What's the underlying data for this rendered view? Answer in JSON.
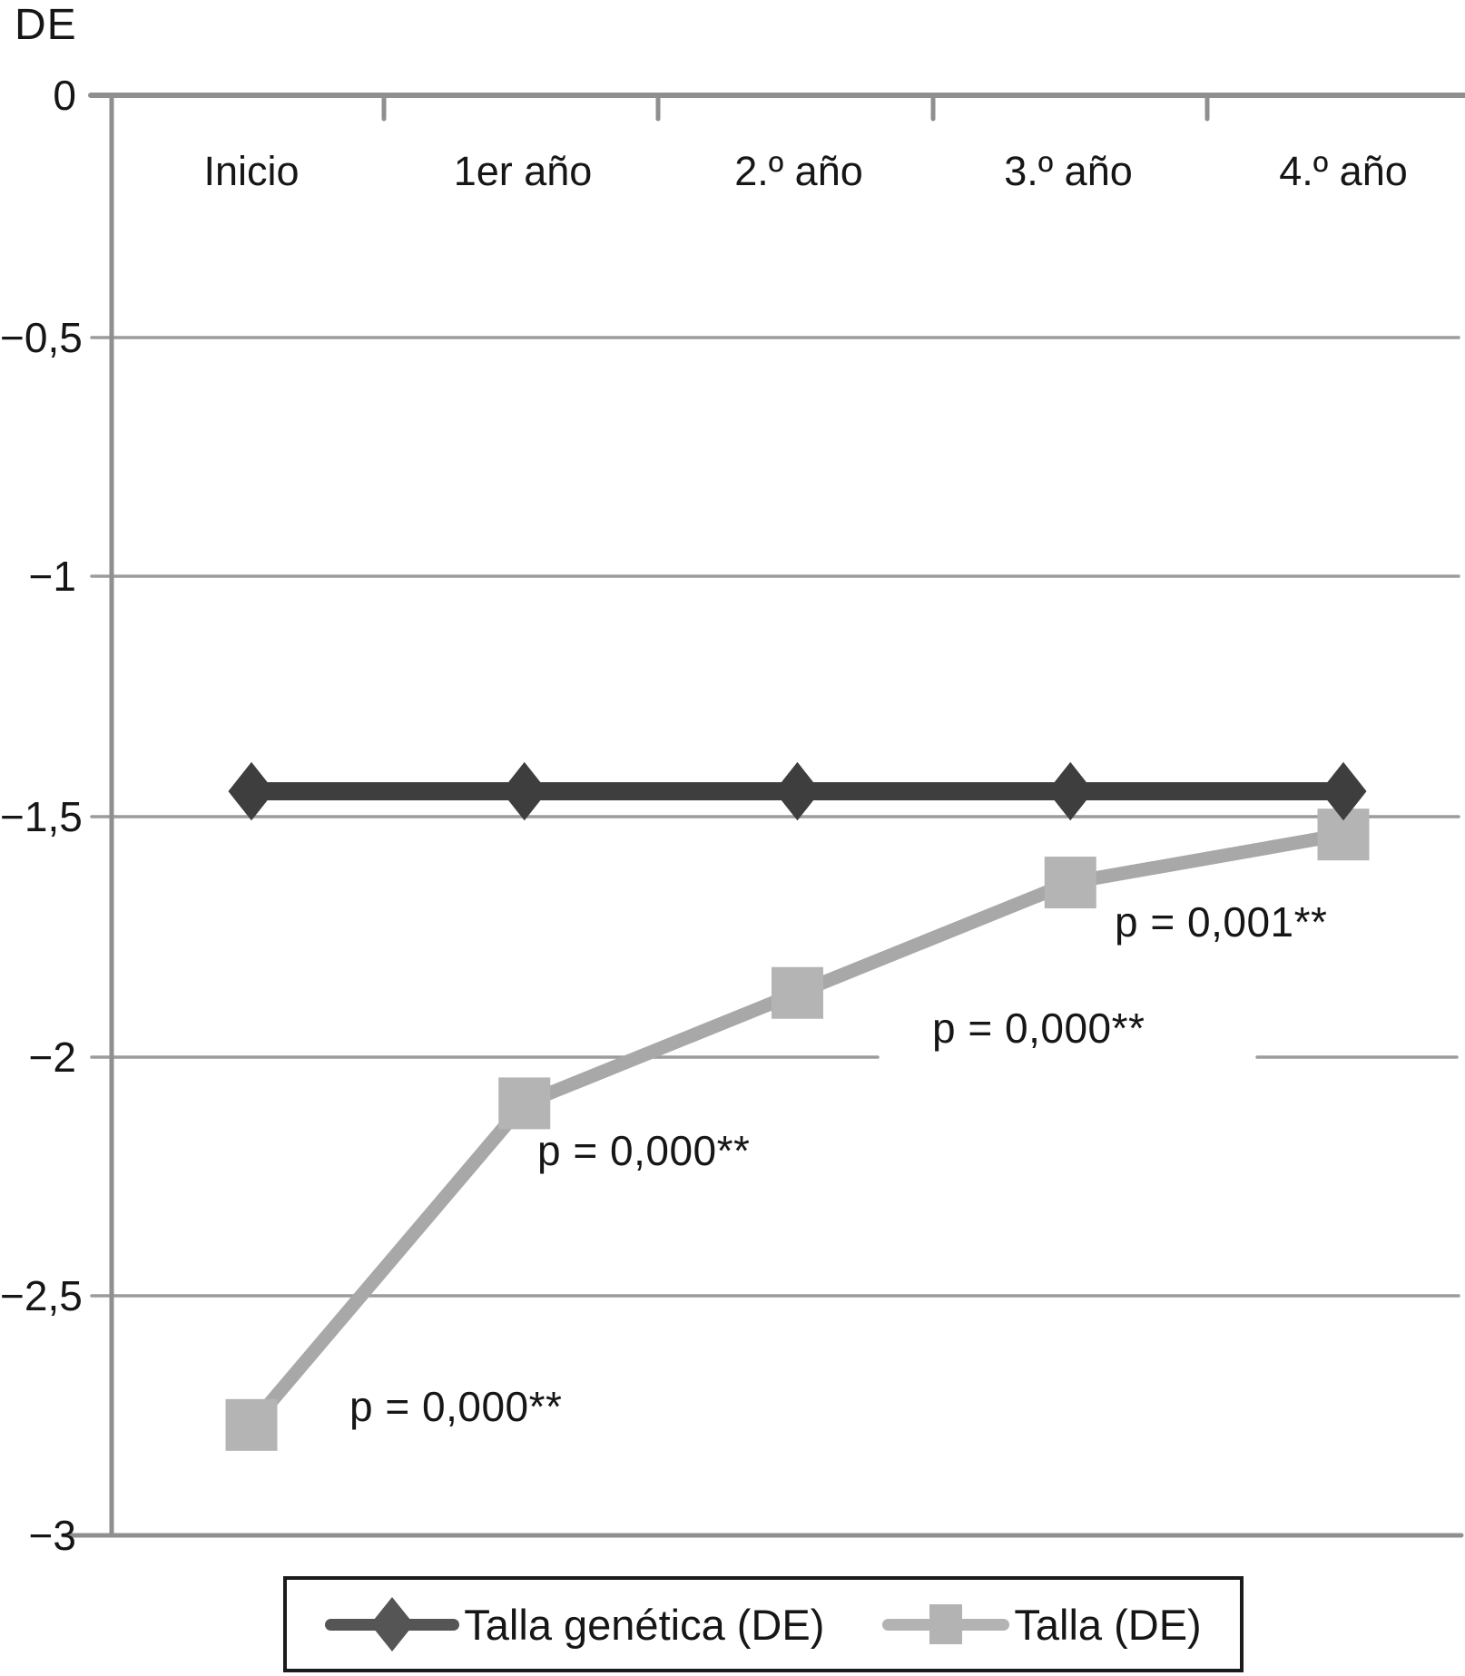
{
  "chart_data": {
    "type": "line",
    "title": "",
    "xlabel": "",
    "ylabel": "DE",
    "categories": [
      "Inicio",
      "1er año",
      "2.º año",
      "3.º año",
      "4.º año"
    ],
    "series": [
      {
        "name": "Talla genética (DE)",
        "marker": "diamond",
        "color": "#3e3e3e",
        "marker_color": "#3e3e3e",
        "values": [
          -1.45,
          -1.45,
          -1.45,
          -1.45,
          -1.45
        ]
      },
      {
        "name": "Talla (DE)",
        "marker": "square",
        "color": "#a8a8a8",
        "marker_color": "#b4b4b4",
        "values": [
          -2.77,
          -2.1,
          -1.87,
          -1.64,
          -1.54
        ]
      }
    ],
    "ylim": [
      -3,
      0
    ],
    "grid": "horizontal",
    "legend_position": "bottom",
    "yticks": [
      {
        "label": "0",
        "value": 0
      },
      {
        "label": "−0,5",
        "value": -0.5
      },
      {
        "label": "−1",
        "value": -1
      },
      {
        "label": "−1,5",
        "value": -1.5
      },
      {
        "label": "−2",
        "value": -2
      },
      {
        "label": "−2,5",
        "value": -2.5
      },
      {
        "label": "−3",
        "value": -3
      }
    ],
    "annotations": [
      {
        "text": "p = 0,000**"
      },
      {
        "text": "p = 0,000**"
      },
      {
        "text": "p = 0,000**"
      },
      {
        "text": "p = 0,001**"
      }
    ]
  }
}
